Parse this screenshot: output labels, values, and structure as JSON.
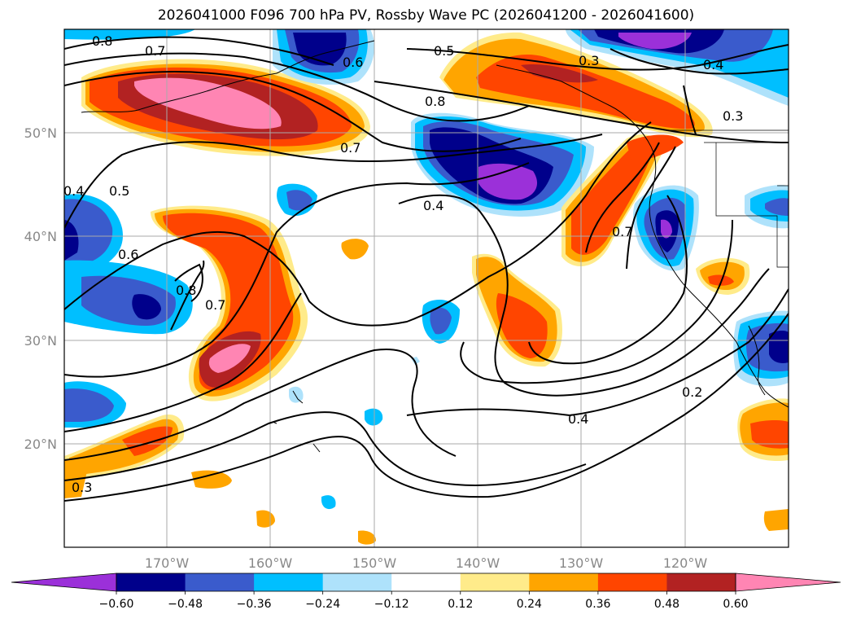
{
  "title": "2026041000 F096 700 hPa PV, Rossby Wave PC (2026041200 - 2026041600)",
  "lon_ticks": [
    "170°W",
    "160°W",
    "150°W",
    "140°W",
    "130°W",
    "120°W"
  ],
  "lat_ticks": [
    "50°N",
    "40°N",
    "30°N",
    "20°N"
  ],
  "colorbar": {
    "tick_labels": [
      "−0.60",
      "−0.48",
      "−0.36",
      "−0.24",
      "−0.12",
      "0.12",
      "0.24",
      "0.36",
      "0.48",
      "0.60"
    ],
    "colors": [
      "#9b30d9",
      "#00008b",
      "#3a5bcc",
      "#00bfff",
      "#aee2fb",
      "#ffffff",
      "#ffeb8a",
      "#ffa500",
      "#ff4500",
      "#b22222",
      "#ff85b3"
    ]
  },
  "contour_labels": [
    "0.8",
    "0.7",
    "0.6",
    "0.5",
    "0.3",
    "0.4",
    "0.8",
    "0.7",
    "0.3",
    "0.4",
    "0.5",
    "0.6",
    "0.8",
    "0.7",
    "0.4",
    "0.7",
    "0.4",
    "0.2",
    "0.3"
  ],
  "colors": {
    "purple": "#9b30d9",
    "navy": "#00008b",
    "royal_blue": "#3a5bcc",
    "sky_blue": "#00bfff",
    "pale_blue": "#aee2fb",
    "pale_yellow": "#ffeb8a",
    "orange": "#ffa500",
    "orange_red": "#ff4500",
    "firebrick": "#b22222",
    "pink": "#ff85b3"
  }
}
